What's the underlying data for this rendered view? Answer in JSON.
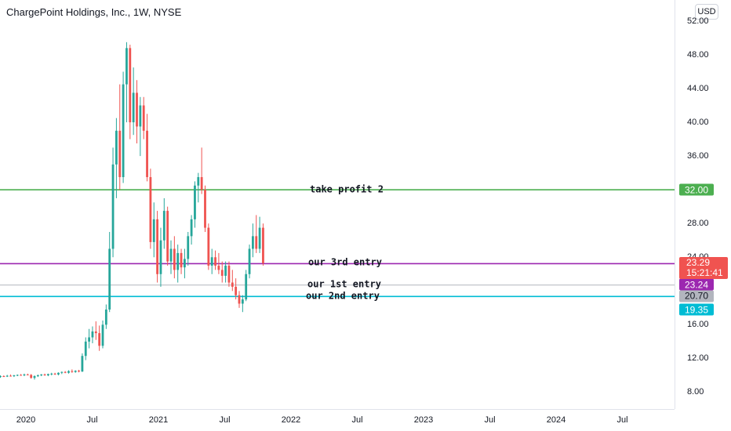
{
  "header": {
    "title": "ChargePoint Holdings, Inc., 1W, NYSE",
    "currency": "USD"
  },
  "chart_data": {
    "type": "candlestick",
    "ylim": [
      6.0,
      54.5
    ],
    "y_ticks": [
      "52.00",
      "48.00",
      "44.00",
      "40.00",
      "36.00",
      "32.00",
      "28.00",
      "24.00",
      "20.00",
      "16.00",
      "12.00",
      "8.00"
    ],
    "x_ticks": [
      {
        "label": "2020",
        "x": "2020-01"
      },
      {
        "label": "Jul",
        "x": "2020-07"
      },
      {
        "label": "2021",
        "x": "2021-01"
      },
      {
        "label": "Jul",
        "x": "2021-07"
      },
      {
        "label": "2022",
        "x": "2022-01"
      },
      {
        "label": "Jul",
        "x": "2022-07"
      },
      {
        "label": "2023",
        "x": "2023-01"
      },
      {
        "label": "Jul",
        "x": "2023-07"
      },
      {
        "label": "2024",
        "x": "2024-01"
      },
      {
        "label": "Jul",
        "x": "2024-07"
      }
    ],
    "levels": [
      {
        "label": "take profit 2",
        "price": 32.0,
        "color": "#4caf50",
        "tag": "32.00"
      },
      {
        "label": "our 3rd entry",
        "price": 23.24,
        "color": "#9c27b0",
        "tag": "23.24"
      },
      {
        "label": "our 1st entry",
        "price": 20.7,
        "color": "#b2b5be",
        "tag": "20.70"
      },
      {
        "label": "our 2nd entry",
        "price": 19.35,
        "color": "#00bcd4",
        "tag": "19.35"
      }
    ],
    "last_price": {
      "price": "23.29",
      "countdown": "15:21:41",
      "color": "#f05350"
    },
    "candles": [
      {
        "o": 9.8,
        "h": 10.0,
        "l": 9.7,
        "c": 9.9
      },
      {
        "o": 9.9,
        "h": 10.0,
        "l": 9.8,
        "c": 9.85
      },
      {
        "o": 9.85,
        "h": 10.05,
        "l": 9.8,
        "c": 9.95
      },
      {
        "o": 9.95,
        "h": 10.1,
        "l": 9.85,
        "c": 9.9
      },
      {
        "o": 9.9,
        "h": 10.05,
        "l": 9.8,
        "c": 10.0
      },
      {
        "o": 10.0,
        "h": 10.1,
        "l": 9.9,
        "c": 10.05
      },
      {
        "o": 10.05,
        "h": 10.15,
        "l": 9.95,
        "c": 10.0
      },
      {
        "o": 10.0,
        "h": 10.2,
        "l": 9.9,
        "c": 10.1
      },
      {
        "o": 10.1,
        "h": 10.2,
        "l": 10.0,
        "c": 10.05
      },
      {
        "o": 10.05,
        "h": 10.15,
        "l": 9.6,
        "c": 9.7
      },
      {
        "o": 9.7,
        "h": 10.0,
        "l": 9.5,
        "c": 9.9
      },
      {
        "o": 9.9,
        "h": 10.1,
        "l": 9.8,
        "c": 10.0
      },
      {
        "o": 10.0,
        "h": 10.15,
        "l": 9.9,
        "c": 10.1
      },
      {
        "o": 10.1,
        "h": 10.2,
        "l": 9.95,
        "c": 10.0
      },
      {
        "o": 10.0,
        "h": 10.2,
        "l": 9.9,
        "c": 10.15
      },
      {
        "o": 10.15,
        "h": 10.3,
        "l": 10.0,
        "c": 10.2
      },
      {
        "o": 10.2,
        "h": 10.3,
        "l": 10.05,
        "c": 10.1
      },
      {
        "o": 10.1,
        "h": 10.35,
        "l": 10.0,
        "c": 10.3
      },
      {
        "o": 10.3,
        "h": 10.45,
        "l": 10.15,
        "c": 10.4
      },
      {
        "o": 10.4,
        "h": 10.5,
        "l": 10.25,
        "c": 10.3
      },
      {
        "o": 10.3,
        "h": 10.6,
        "l": 10.2,
        "c": 10.5
      },
      {
        "o": 10.5,
        "h": 10.7,
        "l": 10.3,
        "c": 10.4
      },
      {
        "o": 10.4,
        "h": 10.6,
        "l": 10.3,
        "c": 10.55
      },
      {
        "o": 10.55,
        "h": 10.65,
        "l": 10.35,
        "c": 10.45
      },
      {
        "o": 10.45,
        "h": 12.6,
        "l": 10.4,
        "c": 12.3
      },
      {
        "o": 12.3,
        "h": 14.5,
        "l": 11.8,
        "c": 14.0
      },
      {
        "o": 14.0,
        "h": 15.5,
        "l": 13.2,
        "c": 14.5
      },
      {
        "o": 14.5,
        "h": 15.8,
        "l": 13.8,
        "c": 15.2
      },
      {
        "o": 15.2,
        "h": 16.4,
        "l": 14.2,
        "c": 15.0
      },
      {
        "o": 15.0,
        "h": 15.9,
        "l": 12.9,
        "c": 13.5
      },
      {
        "o": 13.5,
        "h": 16.5,
        "l": 13.2,
        "c": 16.0
      },
      {
        "o": 16.0,
        "h": 18.4,
        "l": 15.5,
        "c": 17.8
      },
      {
        "o": 17.8,
        "h": 27.0,
        "l": 17.5,
        "c": 25.0
      },
      {
        "o": 25.0,
        "h": 37.0,
        "l": 24.0,
        "c": 35.0
      },
      {
        "o": 35.0,
        "h": 40.5,
        "l": 31.0,
        "c": 39.0
      },
      {
        "o": 39.0,
        "h": 44.5,
        "l": 32.0,
        "c": 33.5
      },
      {
        "o": 33.5,
        "h": 46.0,
        "l": 32.8,
        "c": 44.5
      },
      {
        "o": 44.5,
        "h": 49.5,
        "l": 40.0,
        "c": 48.8
      },
      {
        "o": 48.8,
        "h": 49.2,
        "l": 38.0,
        "c": 40.0
      },
      {
        "o": 40.0,
        "h": 46.5,
        "l": 38.5,
        "c": 43.5
      },
      {
        "o": 43.5,
        "h": 45.0,
        "l": 37.5,
        "c": 39.5
      },
      {
        "o": 39.5,
        "h": 43.0,
        "l": 36.0,
        "c": 42.0
      },
      {
        "o": 42.0,
        "h": 43.0,
        "l": 38.0,
        "c": 39.0
      },
      {
        "o": 39.0,
        "h": 41.0,
        "l": 33.0,
        "c": 33.5
      },
      {
        "o": 33.5,
        "h": 34.5,
        "l": 25.0,
        "c": 25.8
      },
      {
        "o": 25.8,
        "h": 30.5,
        "l": 24.0,
        "c": 28.5
      },
      {
        "o": 28.5,
        "h": 29.5,
        "l": 21.0,
        "c": 22.0
      },
      {
        "o": 22.0,
        "h": 27.5,
        "l": 20.5,
        "c": 26.0
      },
      {
        "o": 26.0,
        "h": 31.0,
        "l": 25.0,
        "c": 29.5
      },
      {
        "o": 29.5,
        "h": 30.0,
        "l": 23.0,
        "c": 23.5
      },
      {
        "o": 23.5,
        "h": 26.0,
        "l": 22.0,
        "c": 25.0
      },
      {
        "o": 25.0,
        "h": 26.5,
        "l": 21.5,
        "c": 22.5
      },
      {
        "o": 22.5,
        "h": 25.5,
        "l": 21.0,
        "c": 24.5
      },
      {
        "o": 24.5,
        "h": 25.0,
        "l": 22.0,
        "c": 22.8
      },
      {
        "o": 22.8,
        "h": 25.0,
        "l": 21.5,
        "c": 23.8
      },
      {
        "o": 23.8,
        "h": 27.0,
        "l": 23.0,
        "c": 26.5
      },
      {
        "o": 26.5,
        "h": 29.0,
        "l": 25.5,
        "c": 28.5
      },
      {
        "o": 28.5,
        "h": 33.0,
        "l": 27.5,
        "c": 32.5
      },
      {
        "o": 32.5,
        "h": 34.0,
        "l": 30.5,
        "c": 33.5
      },
      {
        "o": 33.5,
        "h": 37.0,
        "l": 31.5,
        "c": 32.0
      },
      {
        "o": 32.0,
        "h": 32.5,
        "l": 27.0,
        "c": 27.5
      },
      {
        "o": 27.5,
        "h": 28.0,
        "l": 22.5,
        "c": 23.0
      },
      {
        "o": 23.0,
        "h": 25.0,
        "l": 22.0,
        "c": 24.0
      },
      {
        "o": 24.0,
        "h": 24.8,
        "l": 22.5,
        "c": 23.0
      },
      {
        "o": 23.0,
        "h": 24.5,
        "l": 22.0,
        "c": 22.5
      },
      {
        "o": 22.5,
        "h": 23.5,
        "l": 21.0,
        "c": 21.8
      },
      {
        "o": 21.8,
        "h": 23.5,
        "l": 21.0,
        "c": 23.0
      },
      {
        "o": 23.0,
        "h": 23.5,
        "l": 20.5,
        "c": 21.0
      },
      {
        "o": 21.0,
        "h": 22.5,
        "l": 20.0,
        "c": 20.5
      },
      {
        "o": 20.5,
        "h": 21.5,
        "l": 19.0,
        "c": 19.5
      },
      {
        "o": 19.5,
        "h": 20.0,
        "l": 18.0,
        "c": 18.5
      },
      {
        "o": 18.5,
        "h": 19.5,
        "l": 17.5,
        "c": 19.0
      },
      {
        "o": 19.0,
        "h": 22.5,
        "l": 18.8,
        "c": 22.0
      },
      {
        "o": 22.0,
        "h": 25.5,
        "l": 21.5,
        "c": 25.0
      },
      {
        "o": 25.0,
        "h": 28.0,
        "l": 24.0,
        "c": 26.5
      },
      {
        "o": 26.5,
        "h": 29.0,
        "l": 24.5,
        "c": 25.0
      },
      {
        "o": 25.0,
        "h": 28.8,
        "l": 24.5,
        "c": 27.5
      },
      {
        "o": 27.5,
        "h": 28.0,
        "l": 23.0,
        "c": 23.29
      }
    ]
  }
}
